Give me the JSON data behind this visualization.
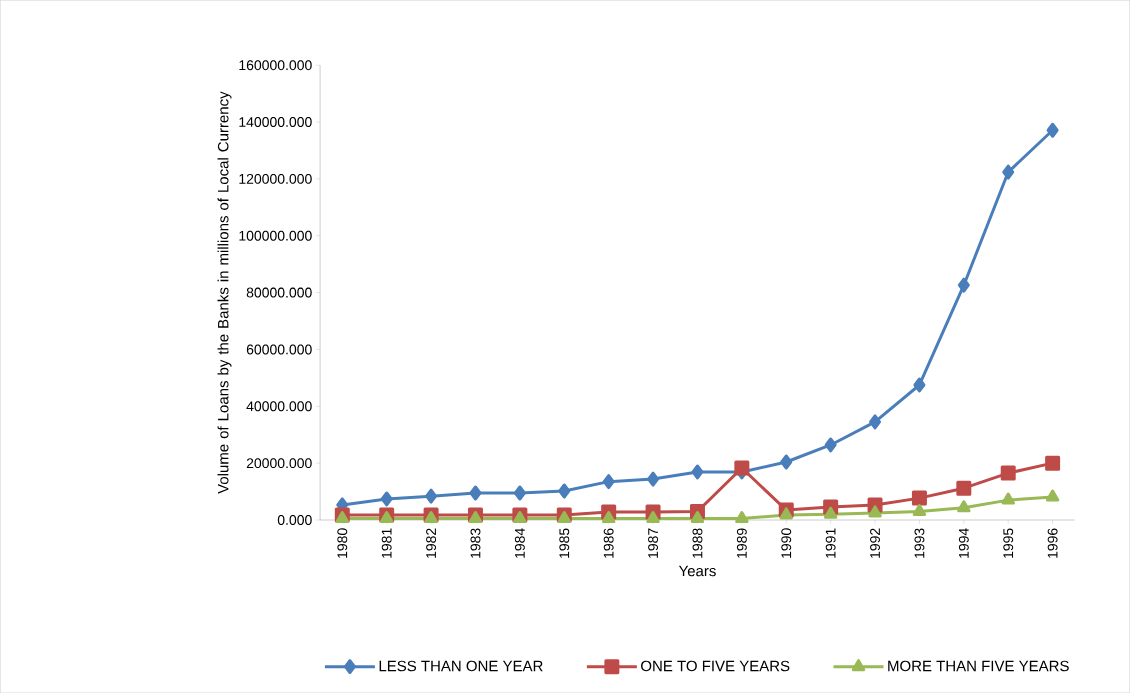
{
  "chart_data": {
    "type": "line",
    "xlabel": "Years",
    "ylabel": "Volume of Loans by the Banks in millions of Local Currency",
    "categories": [
      "1980",
      "1981",
      "1982",
      "1983",
      "1984",
      "1985",
      "1986",
      "1987",
      "1988",
      "1989",
      "1990",
      "1991",
      "1992",
      "1993",
      "1994",
      "1995",
      "1996"
    ],
    "series": [
      {
        "name": "LESS THAN ONE YEAR",
        "color": "#4a7ebb",
        "marker": "diamond",
        "values": [
          5300,
          7400,
          8400,
          9500,
          9500,
          10200,
          13500,
          14400,
          16900,
          16900,
          20400,
          26400,
          34500,
          47500,
          82600,
          122400,
          137100
        ]
      },
      {
        "name": "ONE TO FIVE YEARS",
        "color": "#be4b48",
        "marker": "square",
        "values": [
          1800,
          1800,
          1800,
          1800,
          1800,
          1800,
          2800,
          2800,
          3000,
          18300,
          3500,
          4600,
          5300,
          7700,
          11200,
          16500,
          20000
        ]
      },
      {
        "name": "MORE THAN FIVE YEARS",
        "color": "#98b954",
        "marker": "triangle",
        "values": [
          500,
          500,
          500,
          500,
          500,
          500,
          500,
          500,
          500,
          500,
          1800,
          2000,
          2500,
          3000,
          4300,
          7000,
          8100
        ]
      }
    ],
    "ylim": [
      0,
      160000
    ],
    "yticks": [
      {
        "value": 0,
        "label": "0.000"
      },
      {
        "value": 20000,
        "label": "20000.000"
      },
      {
        "value": 40000,
        "label": "40000.000"
      },
      {
        "value": 60000,
        "label": "60000.000"
      },
      {
        "value": 80000,
        "label": "80000.000"
      },
      {
        "value": 100000,
        "label": "100000.000"
      },
      {
        "value": 120000,
        "label": "120000.000"
      },
      {
        "value": 140000,
        "label": "140000.000"
      },
      {
        "value": 160000,
        "label": "160000.000"
      }
    ],
    "grid": false,
    "legend": "bottom",
    "line_style": "solid"
  }
}
